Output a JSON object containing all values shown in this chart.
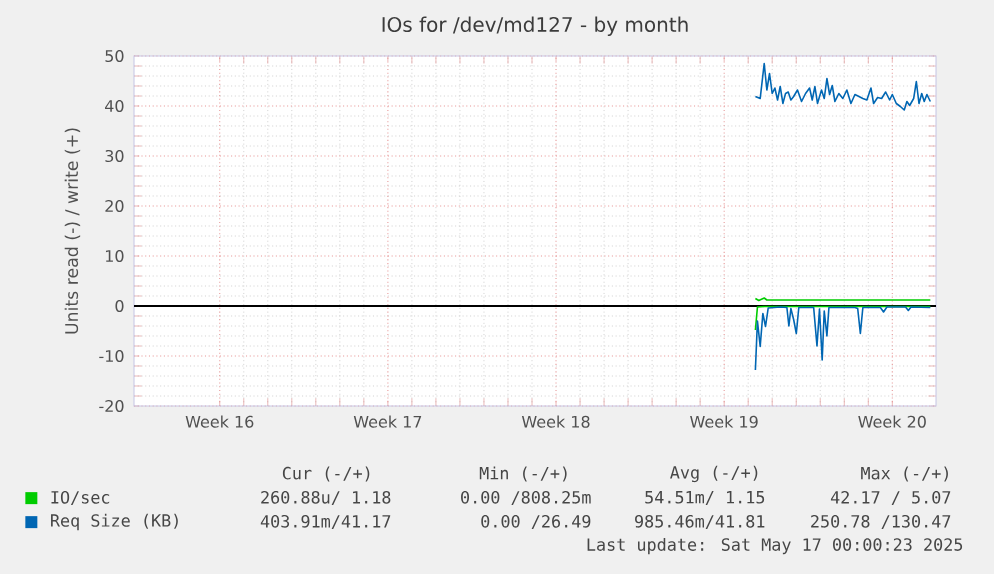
{
  "chart_data": {
    "type": "line",
    "title": "IOs for /dev/md127 - by month",
    "ylabel": "Units read (-) / write (+)",
    "xlim": [
      "2025-04-13T22:20",
      "2025-05-17T07:40"
    ],
    "ylim": [
      -20,
      50
    ],
    "xticks": [
      {
        "value": "2025-04-17T12:00",
        "label": "Week 16"
      },
      {
        "value": "2025-04-24T12:00",
        "label": "Week 17"
      },
      {
        "value": "2025-05-01T12:00",
        "label": "Week 18"
      },
      {
        "value": "2025-05-08T12:00",
        "label": "Week 19"
      },
      {
        "value": "2025-05-15T12:00",
        "label": "Week 20"
      }
    ],
    "yticks": [
      -20,
      -10,
      0,
      10,
      20,
      30,
      40,
      50
    ],
    "grid": true,
    "legend": "bottom",
    "ref_lines": [
      {
        "axis": "y",
        "value": 0,
        "color": "#000000"
      }
    ],
    "series": [
      {
        "color": "#00cc00",
        "x": [
          "2025-05-09T19:12",
          "2025-05-09T21:15",
          "2025-05-10T04:00",
          "2025-05-17T02:00"
        ],
        "values": [
          -4.8,
          -0.2,
          -0.1,
          -0.1
        ]
      },
      {
        "name": "IO/sec",
        "color": "#00cc00",
        "x": [
          "2025-05-09T19:12",
          "2025-05-09T22:35",
          "2025-05-10T04:00",
          "2025-05-10T06:40",
          "2025-05-12T05:25",
          "2025-05-15T00:05",
          "2025-05-17T02:00"
        ],
        "values": [
          1.5,
          1.1,
          1.6,
          1.2,
          1.2,
          1.2,
          1.2
        ]
      },
      {
        "color": "#0066b3",
        "x": [
          "2025-05-09T19:12",
          "2025-05-09T21:15",
          "2025-05-10T00:00",
          "2025-05-10T02:40",
          "2025-05-10T05:20",
          "2025-05-10T08:00",
          "2025-05-10T20:00",
          "2025-05-11T02:40",
          "2025-05-11T04:40",
          "2025-05-11T06:40",
          "2025-05-11T09:25",
          "2025-05-11T12:05",
          "2025-05-11T14:35",
          "2025-05-12T05:25",
          "2025-05-12T08:45",
          "2025-05-12T11:15",
          "2025-05-12T13:55",
          "2025-05-12T16:00",
          "2025-05-12T18:40",
          "2025-05-12T20:40",
          "2025-05-13T22:40",
          "2025-05-14T01:25",
          "2025-05-14T04:05",
          "2025-05-14T06:35",
          "2025-05-15T00:05",
          "2025-05-15T03:15",
          "2025-05-15T06:35",
          "2025-05-16T01:15",
          "2025-05-16T04:00",
          "2025-05-16T06:40",
          "2025-05-17T02:00"
        ],
        "values": [
          -12.8,
          -3.0,
          -8.1,
          -1.5,
          -4.1,
          -0.4,
          -0.2,
          -0.3,
          -4.0,
          -0.5,
          -2.7,
          -5.5,
          -0.3,
          -0.3,
          -8.0,
          -0.6,
          -10.8,
          -1.0,
          -6.0,
          -0.3,
          -0.3,
          -0.5,
          -5.5,
          -0.3,
          -0.3,
          -1.2,
          -0.2,
          -0.2,
          -0.9,
          -0.2,
          -0.3
        ]
      },
      {
        "name": "Req Size (KB)",
        "color": "#0066b3",
        "x": [
          "2025-05-09T19:12",
          "2025-05-10T00:00",
          "2025-05-10T04:00",
          "2025-05-10T06:40",
          "2025-05-10T09:20",
          "2025-05-10T12:00",
          "2025-05-10T14:40",
          "2025-05-10T17:20",
          "2025-05-10T20:00",
          "2025-05-10T22:40",
          "2025-05-11T01:20",
          "2025-05-11T04:00",
          "2025-05-11T06:40",
          "2025-05-11T09:25",
          "2025-05-11T13:15",
          "2025-05-11T17:20",
          "2025-05-11T21:20",
          "2025-05-12T01:20",
          "2025-05-12T04:00",
          "2025-05-12T06:40",
          "2025-05-12T09:15",
          "2025-05-12T13:15",
          "2025-05-12T16:00",
          "2025-05-12T18:40",
          "2025-05-12T21:20",
          "2025-05-13T00:00",
          "2025-05-13T02:40",
          "2025-05-13T06:35",
          "2025-05-13T10:35",
          "2025-05-13T14:35",
          "2025-05-13T18:40",
          "2025-05-13T22:40",
          "2025-05-14T02:40",
          "2025-05-14T06:35",
          "2025-05-14T10:35",
          "2025-05-14T14:40",
          "2025-05-14T17:20",
          "2025-05-14T21:20",
          "2025-05-15T01:20",
          "2025-05-15T05:20",
          "2025-05-15T09:20",
          "2025-05-15T12:00",
          "2025-05-15T16:00",
          "2025-05-15T20:05",
          "2025-05-15T23:55",
          "2025-05-16T02:35",
          "2025-05-16T05:20",
          "2025-05-16T09:20",
          "2025-05-16T12:00",
          "2025-05-16T14:40",
          "2025-05-16T17:25",
          "2025-05-16T19:55",
          "2025-05-16T22:35",
          "2025-05-17T02:00"
        ],
        "values": [
          41.9,
          41.5,
          48.5,
          43.2,
          46.5,
          42.5,
          43.6,
          41.2,
          43.9,
          40.5,
          42.5,
          42.8,
          41.2,
          41.9,
          43.2,
          40.9,
          42.5,
          43.6,
          41.2,
          43.9,
          40.5,
          43.2,
          41.5,
          45.5,
          42.3,
          44.1,
          40.9,
          42.5,
          41.5,
          43.2,
          40.5,
          42.3,
          41.9,
          41.5,
          41.2,
          43.6,
          40.5,
          41.7,
          41.5,
          42.8,
          41.2,
          42.3,
          40.5,
          39.9,
          39.2,
          40.9,
          40.1,
          41.5,
          44.9,
          40.5,
          42.5,
          40.9,
          42.3,
          40.9
        ]
      }
    ],
    "annotations": [
      "Cur (-/+)",
      "Min (-/+)",
      "Avg (-/+)",
      "Max (-/+)",
      "260.88u/ 1.18",
      "0.00 /808.25m",
      "54.51m/ 1.15",
      "42.17 / 5.07",
      "403.91m/41.17",
      "0.00 /26.49",
      "985.46m/41.81",
      "250.78 /130.47",
      "Last update: Sat May 17 00:00:23 2025"
    ]
  }
}
